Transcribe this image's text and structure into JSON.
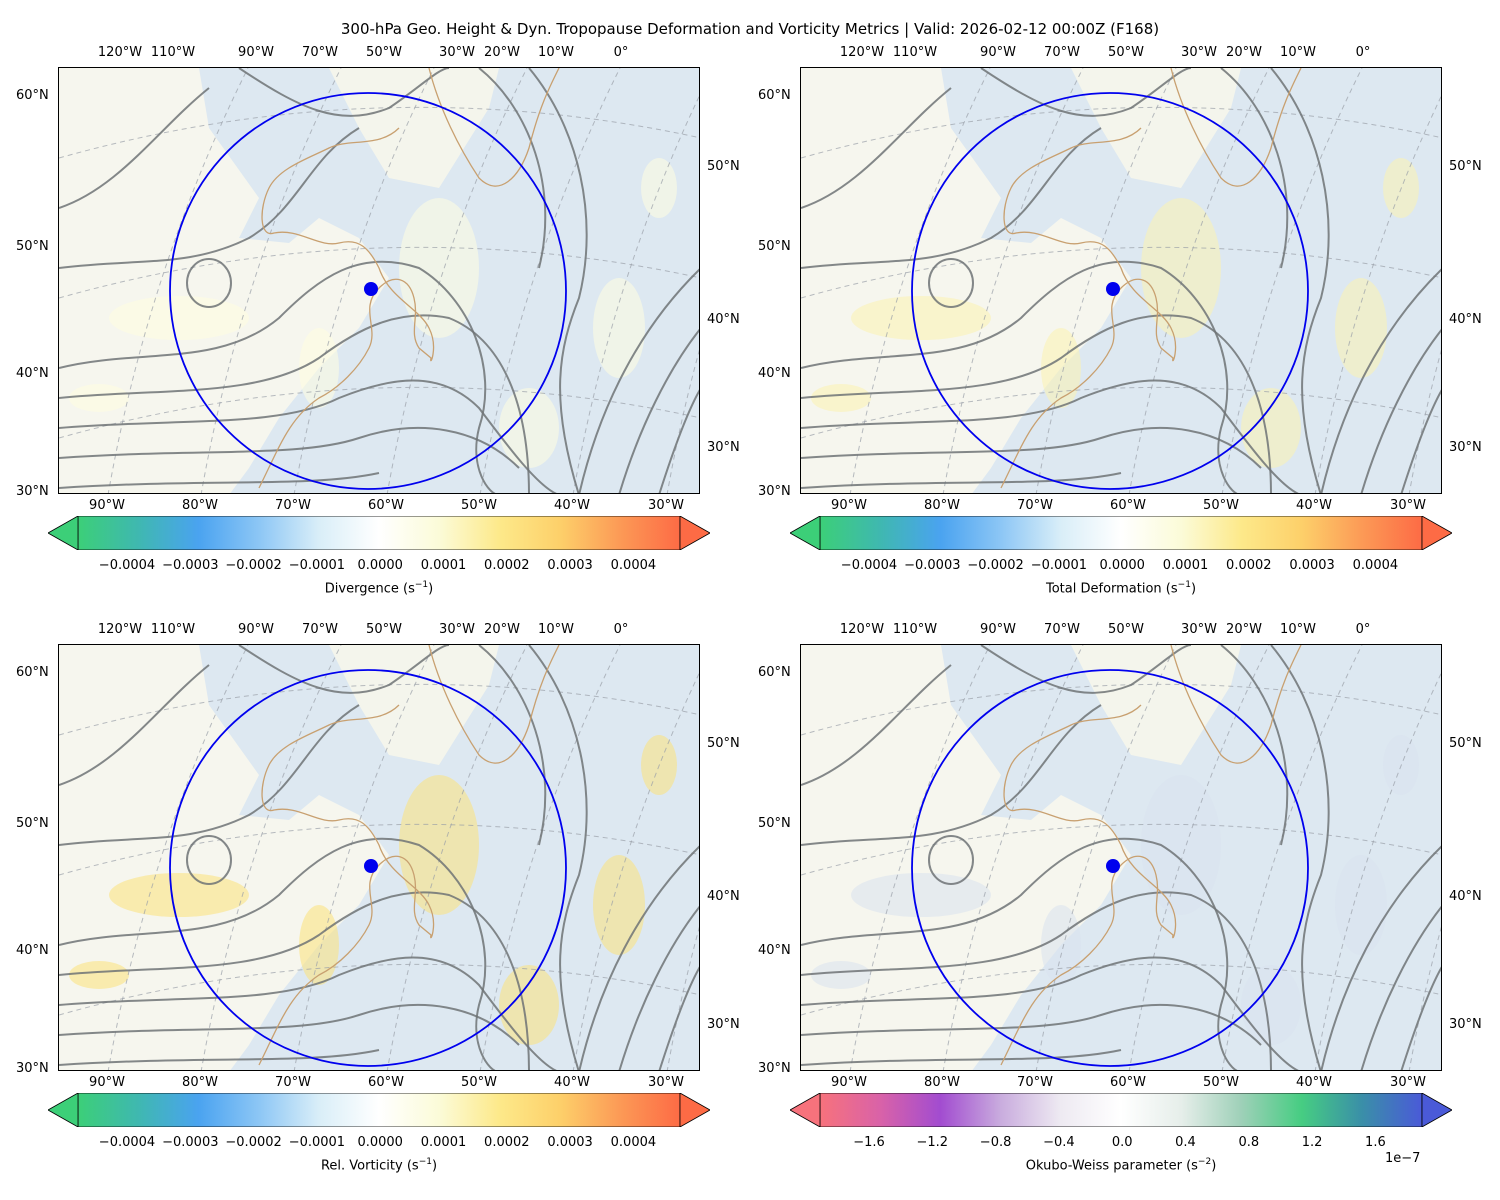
{
  "title": "300-hPa Geo. Height & Dyn. Tropopause Deformation and Vorticity Metrics |  Valid: 2026-02-12 00:00Z (F168)",
  "top_lon_labels": [
    "120°W",
    "110°W",
    "90°W",
    "70°W",
    "50°W",
    "30°W",
    "20°W",
    "10°W",
    "0°"
  ],
  "bottom_lon_labels": [
    "90°W",
    "80°W",
    "70°W",
    "60°W",
    "50°W",
    "40°W",
    "30°W"
  ],
  "left_lat_labels": [
    "60°N",
    "50°N",
    "40°N",
    "30°N"
  ],
  "right_lat_labels": [
    "50°N",
    "40°N",
    "30°N"
  ],
  "panels": [
    {
      "id": "divergence",
      "colorbar_label": "Divergence (s",
      "colorbar_unit_exp": "−1",
      "colorbar_ticks": [
        "−0.0004",
        "−0.0003",
        "−0.0002",
        "−0.0001",
        "0.0000",
        "0.0001",
        "0.0002",
        "0.0003",
        "0.0004"
      ],
      "colormap": [
        "#3ccf78",
        "#3fb8b0",
        "#4aa3f0",
        "#8cc6f5",
        "#d9eef8",
        "#ffffff",
        "#fbfbd8",
        "#fde98a",
        "#fdd06a",
        "#fc9a56",
        "#fd6b45"
      ],
      "field_color": "#fffde0"
    },
    {
      "id": "total-deformation",
      "colorbar_label": "Total Deformation (s",
      "colorbar_unit_exp": "−1",
      "colorbar_ticks": [
        "−0.0004",
        "−0.0003",
        "−0.0002",
        "−0.0001",
        "0.0000",
        "0.0001",
        "0.0002",
        "0.0003",
        "0.0004"
      ],
      "colormap": [
        "#3ccf78",
        "#3fb8b0",
        "#4aa3f0",
        "#8cc6f5",
        "#d9eef8",
        "#ffffff",
        "#fbfbd8",
        "#fde98a",
        "#fdd06a",
        "#fc9a56",
        "#fd6b45"
      ],
      "field_color": "#fbf3b0"
    },
    {
      "id": "relative-vorticity",
      "colorbar_label": "Rel. Vorticity (s",
      "colorbar_unit_exp": "−1",
      "colorbar_ticks": [
        "−0.0004",
        "−0.0003",
        "−0.0002",
        "−0.0001",
        "0.0000",
        "0.0001",
        "0.0002",
        "0.0003",
        "0.0004"
      ],
      "colormap": [
        "#3ccf78",
        "#3fb8b0",
        "#4aa3f0",
        "#8cc6f5",
        "#d9eef8",
        "#ffffff",
        "#fbfbd8",
        "#fde98a",
        "#fdd06a",
        "#fc9a56",
        "#fd6b45"
      ],
      "field_color": "#fce27a"
    },
    {
      "id": "okubo-weiss",
      "colorbar_label": "Okubo-Weiss parameter (s",
      "colorbar_unit_exp": "−2",
      "colorbar_ticks": [
        "−1.6",
        "−1.2",
        "−0.8",
        "−0.4",
        "0.0",
        "0.4",
        "0.8",
        "1.2",
        "1.6"
      ],
      "colorbar_offset": "1e−7",
      "colormap": [
        "#f7727c",
        "#d962a8",
        "#a24cd0",
        "#c9acde",
        "#eeeaf2",
        "#ffffff",
        "#e6eeea",
        "#9ed0b8",
        "#46cd82",
        "#3a8fa8",
        "#4a5ad8"
      ],
      "field_color": "#d8e2ef"
    }
  ]
}
